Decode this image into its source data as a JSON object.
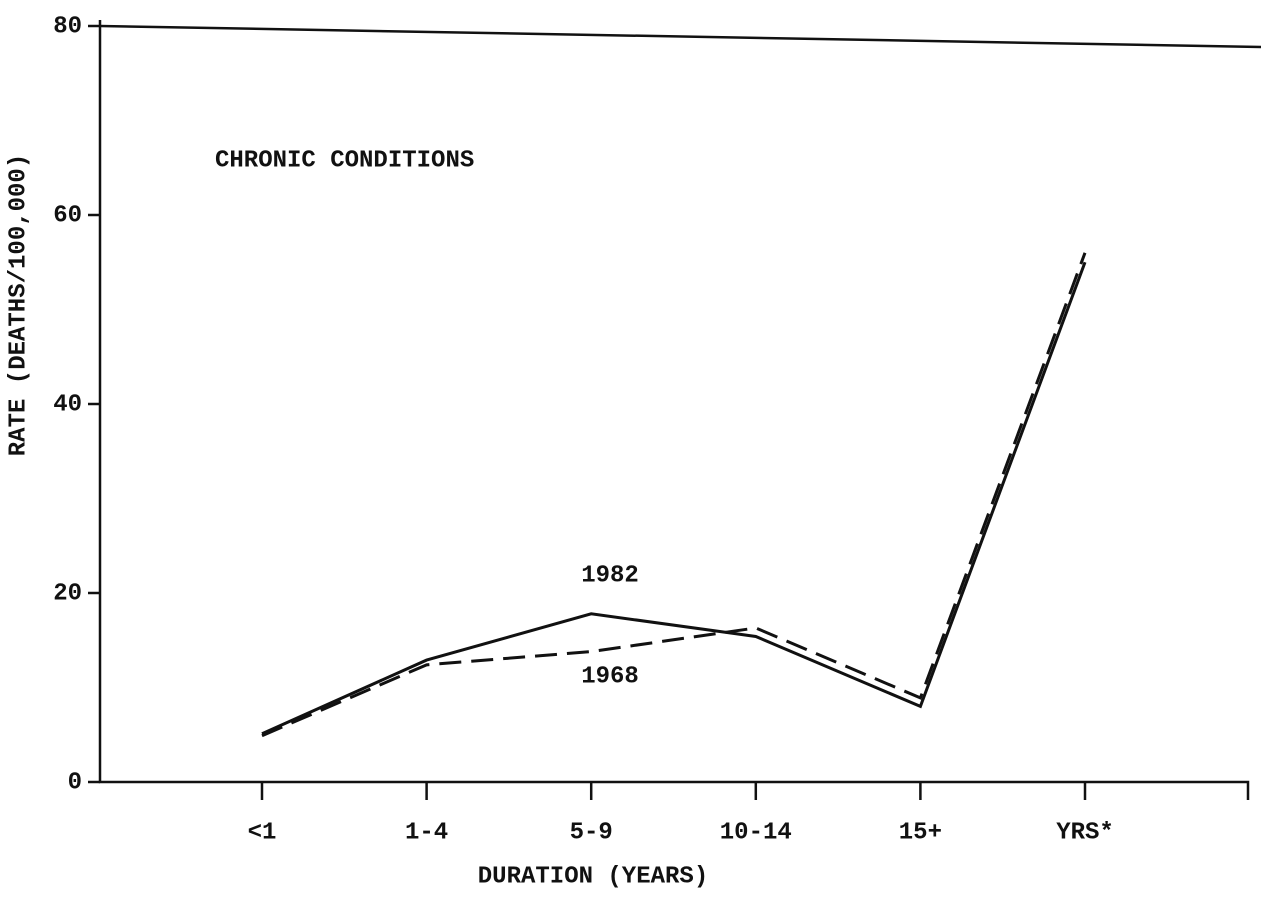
{
  "chart_data": {
    "type": "line",
    "annotations": [
      "CHRONIC CONDITIONS",
      "1982",
      "1968"
    ],
    "xlabel": "DURATION (YEARS)",
    "ylabel": "RATE (DEATHS/100,000)",
    "categories": [
      "<1",
      "1-4",
      "5-9",
      "10-14",
      "15+",
      "YRS*"
    ],
    "series": [
      {
        "name": "1982",
        "color": "#111111",
        "dash": false,
        "values": [
          5.1,
          12.9,
          17.8,
          15.4,
          8.0,
          55
        ]
      },
      {
        "name": "1968",
        "color": "#111111",
        "dash": true,
        "values": [
          4.9,
          12.4,
          13.8,
          16.3,
          8.9,
          56
        ]
      }
    ],
    "ylim": [
      0,
      80
    ],
    "yticks": [
      0,
      20,
      40,
      60,
      80
    ]
  }
}
